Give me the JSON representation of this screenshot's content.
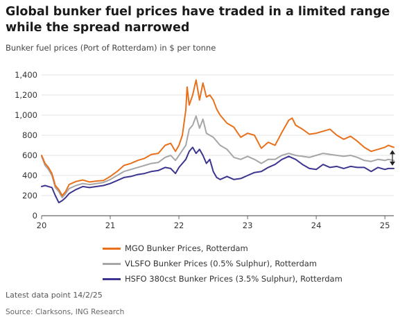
{
  "title": "Global bunker fuel prices have traded in a limited range while the spread narrowed",
  "subtitle": "Bunker fuel prices (Port of Rotterdam) in $ per tonne",
  "note": "Latest data point 14/2/25",
  "source": "Source: Clarksons, ING Research",
  "chart_data": {
    "type": "line",
    "y_ticks": [
      "0",
      "200",
      "400",
      "600",
      "800",
      "1,000",
      "1,200",
      "1,400"
    ],
    "ylim": [
      0,
      1400
    ],
    "x_ticks": [
      {
        "label": "20",
        "x": 2020.0
      },
      {
        "label": "21",
        "x": 2021.0
      },
      {
        "label": "22",
        "x": 2022.0
      },
      {
        "label": "23",
        "x": 2023.0
      },
      {
        "label": "24",
        "x": 2024.0
      },
      {
        "label": "25",
        "x": 2025.0
      }
    ],
    "xlim": [
      2020.0,
      2025.13
    ],
    "grid": "horizontal",
    "spread_arrow": true,
    "series": [
      {
        "name": "MGO Bunker Prices, Rotterdam",
        "color": "#e8701a",
        "points": [
          [
            2020.0,
            600
          ],
          [
            2020.05,
            520
          ],
          [
            2020.1,
            480
          ],
          [
            2020.15,
            420
          ],
          [
            2020.2,
            300
          ],
          [
            2020.25,
            260
          ],
          [
            2020.3,
            200
          ],
          [
            2020.35,
            240
          ],
          [
            2020.4,
            310
          ],
          [
            2020.5,
            340
          ],
          [
            2020.6,
            355
          ],
          [
            2020.7,
            335
          ],
          [
            2020.8,
            345
          ],
          [
            2020.9,
            350
          ],
          [
            2021.0,
            390
          ],
          [
            2021.1,
            440
          ],
          [
            2021.2,
            500
          ],
          [
            2021.3,
            520
          ],
          [
            2021.4,
            550
          ],
          [
            2021.5,
            570
          ],
          [
            2021.6,
            610
          ],
          [
            2021.7,
            620
          ],
          [
            2021.8,
            700
          ],
          [
            2021.88,
            720
          ],
          [
            2021.95,
            640
          ],
          [
            2022.0,
            700
          ],
          [
            2022.05,
            800
          ],
          [
            2022.1,
            1050
          ],
          [
            2022.12,
            1280
          ],
          [
            2022.15,
            1100
          ],
          [
            2022.2,
            1200
          ],
          [
            2022.25,
            1350
          ],
          [
            2022.3,
            1150
          ],
          [
            2022.35,
            1320
          ],
          [
            2022.4,
            1180
          ],
          [
            2022.45,
            1200
          ],
          [
            2022.5,
            1150
          ],
          [
            2022.55,
            1060
          ],
          [
            2022.6,
            1000
          ],
          [
            2022.7,
            920
          ],
          [
            2022.8,
            880
          ],
          [
            2022.9,
            780
          ],
          [
            2023.0,
            820
          ],
          [
            2023.1,
            800
          ],
          [
            2023.2,
            670
          ],
          [
            2023.3,
            730
          ],
          [
            2023.4,
            700
          ],
          [
            2023.5,
            830
          ],
          [
            2023.6,
            950
          ],
          [
            2023.65,
            970
          ],
          [
            2023.7,
            900
          ],
          [
            2023.8,
            860
          ],
          [
            2023.9,
            810
          ],
          [
            2024.0,
            820
          ],
          [
            2024.1,
            840
          ],
          [
            2024.2,
            860
          ],
          [
            2024.3,
            800
          ],
          [
            2024.4,
            760
          ],
          [
            2024.5,
            790
          ],
          [
            2024.6,
            740
          ],
          [
            2024.7,
            680
          ],
          [
            2024.8,
            640
          ],
          [
            2024.9,
            660
          ],
          [
            2025.0,
            680
          ],
          [
            2025.05,
            700
          ],
          [
            2025.13,
            680
          ]
        ]
      },
      {
        "name": "VLSFO Bunker Prices (0.5% Sulphur), Rotterdam",
        "color": "#a6a6a6",
        "points": [
          [
            2020.0,
            590
          ],
          [
            2020.05,
            500
          ],
          [
            2020.1,
            460
          ],
          [
            2020.15,
            400
          ],
          [
            2020.2,
            280
          ],
          [
            2020.25,
            240
          ],
          [
            2020.3,
            180
          ],
          [
            2020.35,
            220
          ],
          [
            2020.4,
            270
          ],
          [
            2020.5,
            300
          ],
          [
            2020.6,
            320
          ],
          [
            2020.7,
            310
          ],
          [
            2020.8,
            320
          ],
          [
            2020.9,
            330
          ],
          [
            2021.0,
            360
          ],
          [
            2021.1,
            400
          ],
          [
            2021.2,
            440
          ],
          [
            2021.3,
            460
          ],
          [
            2021.4,
            480
          ],
          [
            2021.5,
            500
          ],
          [
            2021.6,
            520
          ],
          [
            2021.7,
            530
          ],
          [
            2021.8,
            580
          ],
          [
            2021.88,
            600
          ],
          [
            2021.95,
            550
          ],
          [
            2022.0,
            600
          ],
          [
            2022.1,
            700
          ],
          [
            2022.15,
            860
          ],
          [
            2022.2,
            900
          ],
          [
            2022.25,
            990
          ],
          [
            2022.3,
            870
          ],
          [
            2022.35,
            960
          ],
          [
            2022.4,
            820
          ],
          [
            2022.45,
            800
          ],
          [
            2022.5,
            780
          ],
          [
            2022.55,
            740
          ],
          [
            2022.6,
            700
          ],
          [
            2022.7,
            660
          ],
          [
            2022.8,
            580
          ],
          [
            2022.9,
            560
          ],
          [
            2023.0,
            590
          ],
          [
            2023.1,
            560
          ],
          [
            2023.2,
            520
          ],
          [
            2023.3,
            560
          ],
          [
            2023.4,
            560
          ],
          [
            2023.5,
            600
          ],
          [
            2023.6,
            620
          ],
          [
            2023.7,
            600
          ],
          [
            2023.8,
            590
          ],
          [
            2023.9,
            580
          ],
          [
            2024.0,
            600
          ],
          [
            2024.1,
            620
          ],
          [
            2024.2,
            610
          ],
          [
            2024.3,
            600
          ],
          [
            2024.4,
            590
          ],
          [
            2024.5,
            600
          ],
          [
            2024.6,
            580
          ],
          [
            2024.7,
            550
          ],
          [
            2024.8,
            540
          ],
          [
            2024.9,
            560
          ],
          [
            2025.0,
            550
          ],
          [
            2025.05,
            560
          ],
          [
            2025.13,
            550
          ]
        ]
      },
      {
        "name": "HSFO 380cst Bunker Prices (3.5% Sulphur), Rotterdam",
        "color": "#3b3590",
        "points": [
          [
            2020.0,
            290
          ],
          [
            2020.05,
            300
          ],
          [
            2020.1,
            290
          ],
          [
            2020.15,
            280
          ],
          [
            2020.2,
            200
          ],
          [
            2020.25,
            130
          ],
          [
            2020.3,
            150
          ],
          [
            2020.35,
            180
          ],
          [
            2020.4,
            220
          ],
          [
            2020.5,
            260
          ],
          [
            2020.6,
            290
          ],
          [
            2020.7,
            280
          ],
          [
            2020.8,
            290
          ],
          [
            2020.9,
            300
          ],
          [
            2021.0,
            320
          ],
          [
            2021.1,
            350
          ],
          [
            2021.2,
            380
          ],
          [
            2021.3,
            390
          ],
          [
            2021.4,
            410
          ],
          [
            2021.5,
            420
          ],
          [
            2021.6,
            440
          ],
          [
            2021.7,
            450
          ],
          [
            2021.8,
            480
          ],
          [
            2021.88,
            470
          ],
          [
            2021.95,
            420
          ],
          [
            2022.0,
            480
          ],
          [
            2022.1,
            560
          ],
          [
            2022.15,
            640
          ],
          [
            2022.2,
            680
          ],
          [
            2022.25,
            620
          ],
          [
            2022.3,
            660
          ],
          [
            2022.35,
            600
          ],
          [
            2022.4,
            520
          ],
          [
            2022.45,
            560
          ],
          [
            2022.5,
            440
          ],
          [
            2022.55,
            380
          ],
          [
            2022.6,
            360
          ],
          [
            2022.7,
            390
          ],
          [
            2022.8,
            360
          ],
          [
            2022.9,
            370
          ],
          [
            2023.0,
            400
          ],
          [
            2023.1,
            430
          ],
          [
            2023.2,
            440
          ],
          [
            2023.3,
            480
          ],
          [
            2023.4,
            510
          ],
          [
            2023.5,
            560
          ],
          [
            2023.6,
            590
          ],
          [
            2023.7,
            560
          ],
          [
            2023.8,
            510
          ],
          [
            2023.9,
            470
          ],
          [
            2024.0,
            460
          ],
          [
            2024.1,
            510
          ],
          [
            2024.2,
            480
          ],
          [
            2024.3,
            490
          ],
          [
            2024.4,
            470
          ],
          [
            2024.5,
            490
          ],
          [
            2024.6,
            480
          ],
          [
            2024.7,
            480
          ],
          [
            2024.8,
            440
          ],
          [
            2024.9,
            480
          ],
          [
            2025.0,
            460
          ],
          [
            2025.05,
            470
          ],
          [
            2025.13,
            470
          ]
        ]
      }
    ]
  }
}
